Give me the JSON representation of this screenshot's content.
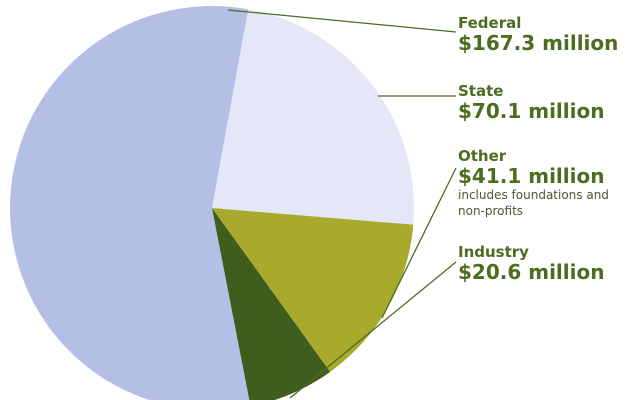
{
  "chart_data": {
    "type": "pie",
    "categories": [
      "Federal",
      "State",
      "Other",
      "Industry"
    ],
    "values": [
      167.3,
      70.1,
      41.1,
      20.6
    ],
    "value_labels": [
      "$167.3 million",
      "$70.1 million",
      "$41.1 million",
      "$20.6 million"
    ],
    "colors": [
      "#b4bfe5",
      "#e3e7f7",
      "#a9aa2c",
      "#3f5d1d"
    ],
    "annotation": "includes foundations and non-profits"
  }
}
